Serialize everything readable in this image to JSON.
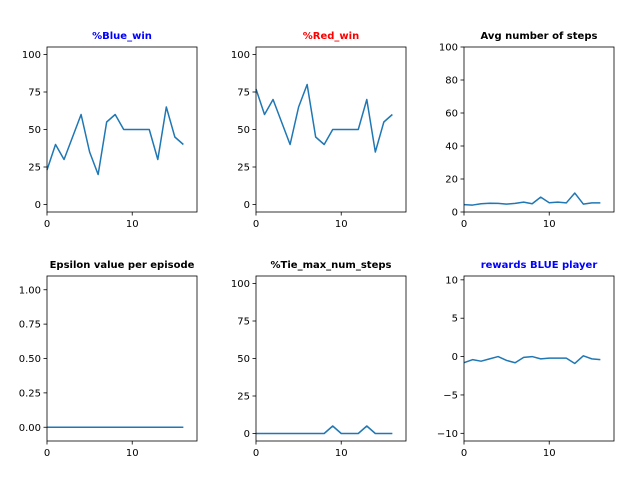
{
  "chart_data": [
    {
      "type": "line",
      "title": "%Blue_win",
      "title_color": "#0000ff",
      "line_color": "#1f77b4",
      "x": [
        0,
        1,
        2,
        3,
        4,
        5,
        6,
        7,
        8,
        9,
        10,
        11,
        12,
        13,
        14,
        15,
        16
      ],
      "y": [
        23,
        40,
        30,
        45,
        60,
        35,
        20,
        55,
        60,
        50,
        50,
        50,
        50,
        30,
        65,
        45,
        40
      ],
      "xlim": [
        0,
        17.6
      ],
      "ylim": [
        -5,
        105
      ],
      "xticks": [
        0,
        10
      ],
      "xtick_labels": [
        "0",
        "10"
      ],
      "yticks": [
        0,
        25,
        50,
        75,
        100
      ],
      "ytick_labels": [
        "0",
        "25",
        "50",
        "75",
        "100"
      ]
    },
    {
      "type": "line",
      "title": "%Red_win",
      "title_color": "#ff0000",
      "line_color": "#1f77b4",
      "x": [
        0,
        1,
        2,
        3,
        4,
        5,
        6,
        7,
        8,
        9,
        10,
        11,
        12,
        13,
        14,
        15,
        16
      ],
      "y": [
        77,
        60,
        70,
        55,
        40,
        65,
        80,
        45,
        40,
        50,
        50,
        50,
        50,
        70,
        35,
        55,
        60
      ],
      "xlim": [
        0,
        17.6
      ],
      "ylim": [
        -5,
        105
      ],
      "xticks": [
        0,
        10
      ],
      "xtick_labels": [
        "0",
        "10"
      ],
      "yticks": [
        0,
        25,
        50,
        75,
        100
      ],
      "ytick_labels": [
        "0",
        "25",
        "50",
        "75",
        "100"
      ]
    },
    {
      "type": "line",
      "title": "Avg number of steps",
      "title_color": "#000000",
      "line_color": "#1f77b4",
      "x": [
        0,
        1,
        2,
        3,
        4,
        5,
        6,
        7,
        8,
        9,
        10,
        11,
        12,
        13,
        14,
        15,
        16
      ],
      "y": [
        4.5,
        4.2,
        5.0,
        5.3,
        5.2,
        4.8,
        5.2,
        6.0,
        5.0,
        9.0,
        5.6,
        6.0,
        5.5,
        11.5,
        4.8,
        5.5,
        5.5
      ],
      "xlim": [
        0,
        17.6
      ],
      "ylim": [
        0,
        100
      ],
      "xticks": [
        0,
        10
      ],
      "xtick_labels": [
        "0",
        "10"
      ],
      "yticks": [
        0,
        20,
        40,
        60,
        80,
        100
      ],
      "ytick_labels": [
        "0",
        "20",
        "40",
        "60",
        "80",
        "100"
      ]
    },
    {
      "type": "line",
      "title": "Epsilon value per episode",
      "title_color": "#000000",
      "line_color": "#1f77b4",
      "x": [
        0,
        1,
        2,
        3,
        4,
        5,
        6,
        7,
        8,
        9,
        10,
        11,
        12,
        13,
        14,
        15,
        16
      ],
      "y": [
        0,
        0,
        0,
        0,
        0,
        0,
        0,
        0,
        0,
        0,
        0,
        0,
        0,
        0,
        0,
        0,
        0
      ],
      "xlim": [
        0,
        17.6
      ],
      "ylim": [
        -0.1,
        1.1
      ],
      "xticks": [
        0,
        10
      ],
      "xtick_labels": [
        "0",
        "10"
      ],
      "yticks": [
        0,
        0.25,
        0.5,
        0.75,
        1.0
      ],
      "ytick_labels": [
        "0.00",
        "0.25",
        "0.50",
        "0.75",
        "1.00"
      ]
    },
    {
      "type": "line",
      "title": "%Tie_max_num_steps",
      "title_color": "#000000",
      "line_color": "#1f77b4",
      "x": [
        0,
        1,
        2,
        3,
        4,
        5,
        6,
        7,
        8,
        9,
        10,
        11,
        12,
        13,
        14,
        15,
        16
      ],
      "y": [
        0,
        0,
        0,
        0,
        0,
        0,
        0,
        0,
        0,
        5,
        0,
        0,
        0,
        5,
        0,
        0,
        0
      ],
      "xlim": [
        0,
        17.6
      ],
      "ylim": [
        -5,
        105
      ],
      "xticks": [
        0,
        10
      ],
      "xtick_labels": [
        "0",
        "10"
      ],
      "yticks": [
        0,
        25,
        50,
        75,
        100
      ],
      "ytick_labels": [
        "0",
        "25",
        "50",
        "75",
        "100"
      ]
    },
    {
      "type": "line",
      "title": "rewards BLUE player",
      "title_color": "#0000ff",
      "line_color": "#1f77b4",
      "x": [
        0,
        1,
        2,
        3,
        4,
        5,
        6,
        7,
        8,
        9,
        10,
        11,
        12,
        13,
        14,
        15,
        16
      ],
      "y": [
        -0.8,
        -0.4,
        -0.6,
        -0.3,
        0.0,
        -0.5,
        -0.8,
        -0.1,
        0.0,
        -0.3,
        -0.2,
        -0.2,
        -0.2,
        -0.9,
        0.1,
        -0.3,
        -0.4
      ],
      "xlim": [
        0,
        17.6
      ],
      "ylim": [
        -11,
        10.5
      ],
      "xticks": [
        0,
        10
      ],
      "xtick_labels": [
        "0",
        "10"
      ],
      "yticks": [
        -10,
        -5,
        0,
        5,
        10
      ],
      "ytick_labels": [
        "−10",
        "−5",
        "0",
        "5",
        "10"
      ]
    }
  ]
}
